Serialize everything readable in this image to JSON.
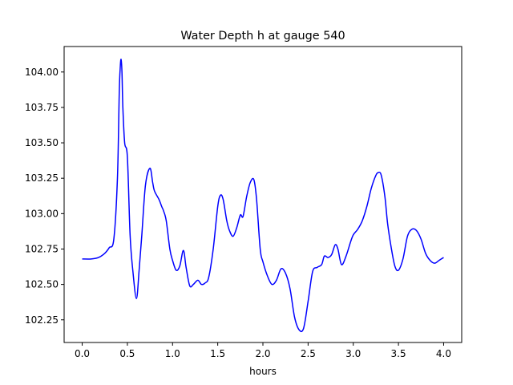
{
  "chart_data": {
    "type": "line",
    "title": "Water Depth h at gauge 540",
    "xlabel": "hours",
    "ylabel": "",
    "xlim": [
      -0.2,
      4.2
    ],
    "ylim": [
      102.09,
      104.18
    ],
    "grid": false,
    "x_ticks": [
      {
        "value": 0.0,
        "label": "0.0"
      },
      {
        "value": 0.5,
        "label": "0.5"
      },
      {
        "value": 1.0,
        "label": "1.0"
      },
      {
        "value": 1.5,
        "label": "1.5"
      },
      {
        "value": 2.0,
        "label": "2.0"
      },
      {
        "value": 2.5,
        "label": "2.5"
      },
      {
        "value": 3.0,
        "label": "3.0"
      },
      {
        "value": 3.5,
        "label": "3.5"
      },
      {
        "value": 4.0,
        "label": "4.0"
      }
    ],
    "y_ticks": [
      {
        "value": 102.25,
        "label": "102.25"
      },
      {
        "value": 102.5,
        "label": "102.50"
      },
      {
        "value": 102.75,
        "label": "102.75"
      },
      {
        "value": 103.0,
        "label": "103.00"
      },
      {
        "value": 103.25,
        "label": "103.25"
      },
      {
        "value": 103.5,
        "label": "103.50"
      },
      {
        "value": 103.75,
        "label": "103.75"
      },
      {
        "value": 104.0,
        "label": "104.00"
      }
    ],
    "series": [
      {
        "color": "#0000ff",
        "x": [
          0.0,
          0.1,
          0.18,
          0.25,
          0.3,
          0.35,
          0.39,
          0.41,
          0.42,
          0.43,
          0.44,
          0.45,
          0.47,
          0.5,
          0.53,
          0.56,
          0.6,
          0.63,
          0.66,
          0.7,
          0.75,
          0.78,
          0.8,
          0.85,
          0.88,
          0.9,
          0.93,
          0.97,
          1.0,
          1.04,
          1.08,
          1.12,
          1.15,
          1.19,
          1.23,
          1.28,
          1.32,
          1.36,
          1.4,
          1.45,
          1.5,
          1.53,
          1.56,
          1.6,
          1.63,
          1.67,
          1.71,
          1.75,
          1.78,
          1.82,
          1.86,
          1.9,
          1.93,
          1.97,
          2.0,
          2.05,
          2.1,
          2.15,
          2.2,
          2.25,
          2.3,
          2.35,
          2.4,
          2.45,
          2.5,
          2.55,
          2.6,
          2.65,
          2.68,
          2.72,
          2.76,
          2.8,
          2.83,
          2.87,
          2.92,
          2.97,
          3.0,
          3.05,
          3.1,
          3.15,
          3.2,
          3.25,
          3.28,
          3.31,
          3.35,
          3.38,
          3.42,
          3.46,
          3.5,
          3.55,
          3.6,
          3.65,
          3.7,
          3.75,
          3.8,
          3.85,
          3.9,
          3.95,
          4.0
        ],
        "y": [
          102.68,
          102.68,
          102.69,
          102.72,
          102.76,
          102.82,
          103.25,
          103.85,
          104.02,
          104.09,
          104.0,
          103.75,
          103.5,
          103.4,
          102.85,
          102.6,
          102.4,
          102.6,
          102.85,
          103.2,
          103.32,
          103.22,
          103.16,
          103.1,
          103.05,
          103.02,
          102.95,
          102.75,
          102.67,
          102.6,
          102.63,
          102.74,
          102.62,
          102.49,
          102.5,
          102.53,
          102.5,
          102.51,
          102.55,
          102.75,
          103.05,
          103.13,
          103.1,
          102.95,
          102.88,
          102.84,
          102.9,
          102.99,
          102.98,
          103.12,
          103.22,
          103.24,
          103.1,
          102.75,
          102.66,
          102.56,
          102.5,
          102.53,
          102.61,
          102.58,
          102.47,
          102.27,
          102.18,
          102.19,
          102.38,
          102.59,
          102.62,
          102.64,
          102.7,
          102.69,
          102.71,
          102.78,
          102.75,
          102.64,
          102.7,
          102.8,
          102.85,
          102.89,
          102.95,
          103.05,
          103.18,
          103.27,
          103.29,
          103.27,
          103.12,
          102.93,
          102.76,
          102.63,
          102.6,
          102.68,
          102.84,
          102.89,
          102.88,
          102.82,
          102.72,
          102.67,
          102.65,
          102.67,
          102.69
        ]
      }
    ]
  }
}
